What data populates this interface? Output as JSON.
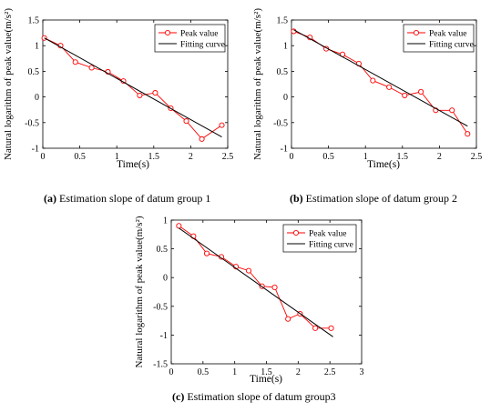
{
  "chart_data": [
    {
      "type": "line",
      "caption_letter": "(a)",
      "caption_text": " Estimation slope of datum group 1",
      "xlabel": "Time(s)",
      "ylabel": "Natural logarithm of peak value(m/s²)",
      "xlim": [
        0,
        2.5
      ],
      "ylim": [
        -1,
        1.5
      ],
      "xticks": [
        0,
        0.5,
        1,
        1.5,
        2,
        2.5
      ],
      "xtick_labels": [
        "0",
        "0.5",
        "1",
        "1.5",
        "2",
        "2.5"
      ],
      "yticks": [
        -1,
        -0.5,
        0,
        0.5,
        1,
        1.5
      ],
      "ytick_labels": [
        "-1",
        "-0.5",
        "0",
        "0.5",
        "1",
        "1.5"
      ],
      "legend_position": "top-right",
      "series": [
        {
          "name": "Peak value",
          "color": "#ff0000",
          "marker": "open-circle",
          "x": [
            0.02,
            0.24,
            0.44,
            0.66,
            0.88,
            1.09,
            1.31,
            1.52,
            1.73,
            1.94,
            2.15,
            2.42
          ],
          "y": [
            1.15,
            1.0,
            0.68,
            0.57,
            0.49,
            0.31,
            0.03,
            0.08,
            -0.22,
            -0.47,
            -0.82,
            -0.55
          ]
        },
        {
          "name": "Fitting curve",
          "color": "#000000",
          "marker": "none",
          "x": [
            0.02,
            2.42
          ],
          "y": [
            1.15,
            -0.78
          ]
        }
      ]
    },
    {
      "type": "line",
      "caption_letter": "(b)",
      "caption_text": " Estimation slope of datum group 2",
      "xlabel": "Time(s)",
      "ylabel": "Natural logarithm of peak value(m/s²)",
      "xlim": [
        0,
        2.5
      ],
      "ylim": [
        -1,
        1.5
      ],
      "xticks": [
        0,
        0.5,
        1,
        1.5,
        2,
        2.5
      ],
      "xtick_labels": [
        "0",
        "0.5",
        "1",
        "1.5",
        "2",
        "2.5"
      ],
      "yticks": [
        -1,
        -0.5,
        0,
        0.5,
        1,
        1.5
      ],
      "ytick_labels": [
        "-1",
        "-0.5",
        "0",
        "0.5",
        "1",
        "1.5"
      ],
      "legend_position": "top-right",
      "series": [
        {
          "name": "Peak value",
          "color": "#ff0000",
          "marker": "open-circle",
          "x": [
            0.03,
            0.25,
            0.47,
            0.69,
            0.91,
            1.1,
            1.32,
            1.53,
            1.75,
            1.95,
            2.17,
            2.38
          ],
          "y": [
            1.28,
            1.16,
            0.94,
            0.83,
            0.65,
            0.32,
            0.19,
            0.03,
            0.1,
            -0.26,
            -0.26,
            -0.72
          ]
        },
        {
          "name": "Fitting curve",
          "color": "#000000",
          "marker": "none",
          "x": [
            0.03,
            2.38
          ],
          "y": [
            1.31,
            -0.57
          ]
        }
      ]
    },
    {
      "type": "line",
      "caption_letter": "(c)",
      "caption_text": " Estimation slope of datum group3",
      "xlabel": "Time(s)",
      "ylabel": "Natural logarithm of peak value(m/s²)",
      "xlim": [
        0,
        3
      ],
      "ylim": [
        -1.5,
        1
      ],
      "xticks": [
        0,
        0.5,
        1,
        1.5,
        2,
        2.5,
        3
      ],
      "xtick_labels": [
        "0",
        "0.5",
        "1",
        "1.5",
        "2",
        "2.5",
        "3"
      ],
      "yticks": [
        -1.5,
        -1,
        -0.5,
        0,
        0.5,
        1
      ],
      "ytick_labels": [
        "-1.5",
        "-1",
        "-0.5",
        "0",
        "0.5",
        "1"
      ],
      "legend_position": "top-right",
      "series": [
        {
          "name": "Peak value",
          "color": "#ff0000",
          "marker": "open-circle",
          "x": [
            0.12,
            0.35,
            0.56,
            0.79,
            1.02,
            1.22,
            1.43,
            1.63,
            1.84,
            2.03,
            2.27,
            2.52
          ],
          "y": [
            0.9,
            0.72,
            0.42,
            0.36,
            0.19,
            0.12,
            -0.15,
            -0.17,
            -0.72,
            -0.63,
            -0.88,
            -0.88
          ]
        },
        {
          "name": "Fitting curve",
          "color": "#000000",
          "marker": "none",
          "x": [
            0.12,
            2.55
          ],
          "y": [
            0.86,
            -1.03
          ]
        }
      ]
    }
  ]
}
